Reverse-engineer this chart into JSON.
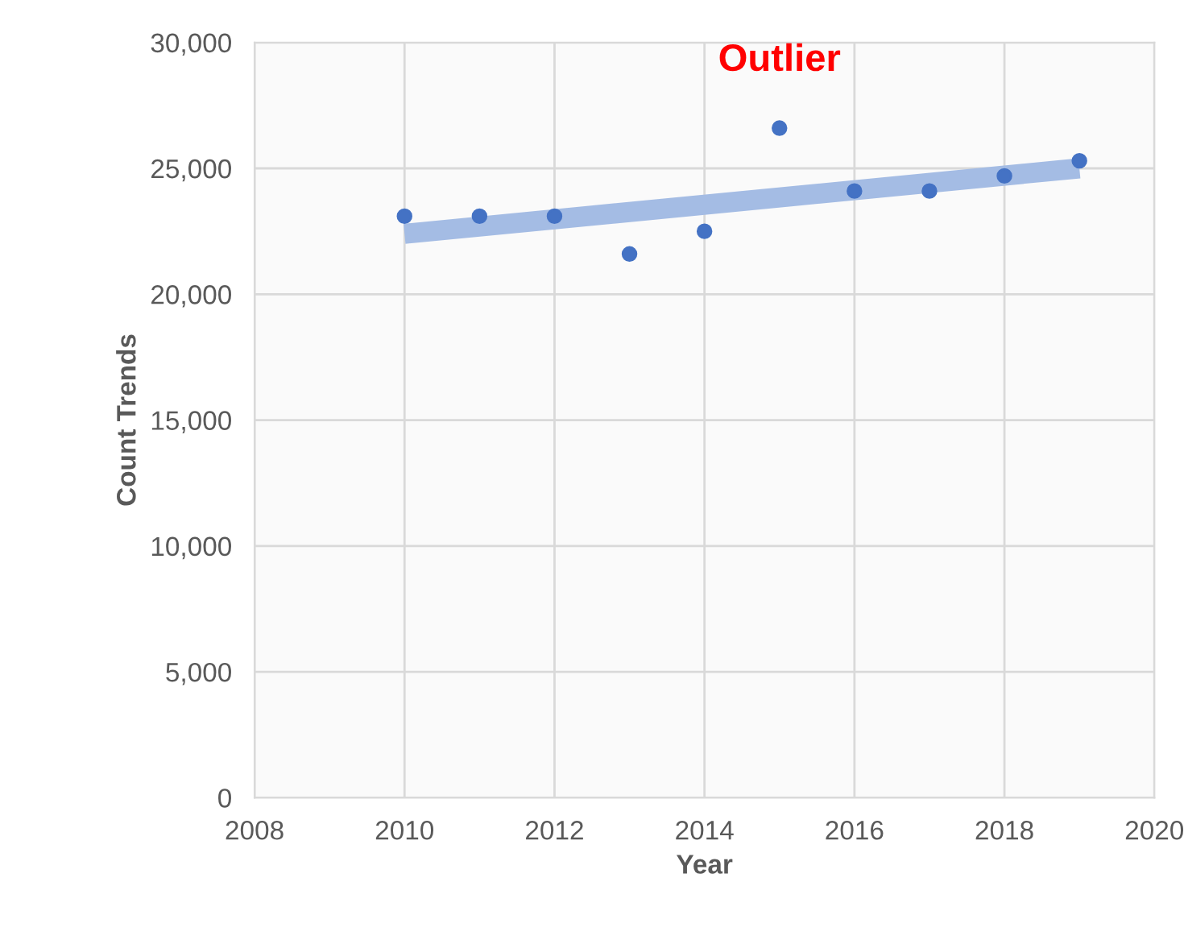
{
  "chart_data": {
    "type": "scatter",
    "xlabel": "Year",
    "ylabel": "Count Trends",
    "series": [
      {
        "marker": "circle",
        "color": "#4472c4",
        "x": [
          2010,
          2011,
          2012,
          2013,
          2014,
          2015,
          2016,
          2017,
          2018,
          2019
        ],
        "values": [
          23100,
          23100,
          23100,
          21600,
          22500,
          26600,
          24100,
          24100,
          24700,
          25300
        ]
      },
      {
        "type": "line",
        "color": "#a4bce4",
        "x": [
          2010,
          2019
        ],
        "values": [
          22400,
          25000
        ]
      }
    ],
    "annotations": [
      {
        "text": "Outlier",
        "x": 2015,
        "y": 26600
      }
    ],
    "xlim": [
      2008,
      2020
    ],
    "xticks": [
      2008,
      2010,
      2012,
      2014,
      2016,
      2018,
      2020
    ],
    "ylim": [
      0,
      30000
    ],
    "yticks": [
      {
        "value": 0,
        "label": "0"
      },
      {
        "value": 5000,
        "label": "5,000"
      },
      {
        "value": 10000,
        "label": "10,000"
      },
      {
        "value": 15000,
        "label": "15,000"
      },
      {
        "value": 20000,
        "label": "20,000"
      },
      {
        "value": 25000,
        "label": "25,000"
      },
      {
        "value": 30000,
        "label": "30,000"
      }
    ],
    "grid": true,
    "legend": false
  }
}
